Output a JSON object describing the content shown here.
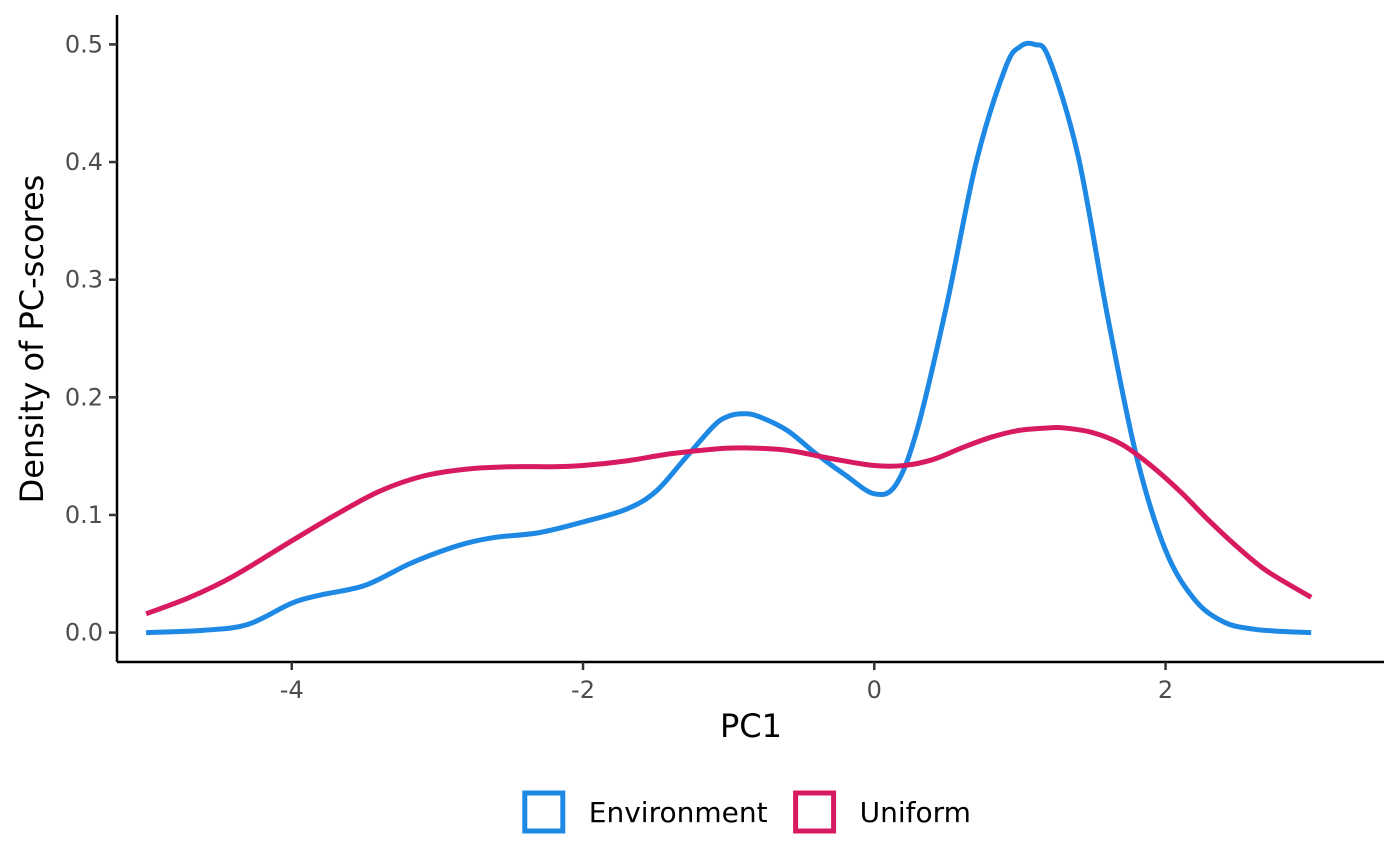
{
  "chart_data": {
    "type": "line",
    "title": "",
    "xlabel": "PC1",
    "ylabel": "Density of PC-scores",
    "xlim": [
      -5.2,
      3.5
    ],
    "ylim": [
      -0.025,
      0.525
    ],
    "x_ticks": [
      -4,
      -2,
      0,
      2
    ],
    "x_tick_labels": [
      "-4",
      "-2",
      "0",
      "2"
    ],
    "y_ticks": [
      0.0,
      0.1,
      0.2,
      0.3,
      0.4,
      0.5
    ],
    "y_tick_labels": [
      "0.0",
      "0.1",
      "0.2",
      "0.3",
      "0.4",
      "0.5"
    ],
    "grid": false,
    "legend_position": "bottom",
    "series": [
      {
        "name": "Environment",
        "color": "#1e88e5",
        "x": [
          -5.0,
          -4.6,
          -4.3,
          -4.0,
          -3.8,
          -3.5,
          -3.2,
          -3.0,
          -2.8,
          -2.6,
          -2.3,
          -2.0,
          -1.7,
          -1.5,
          -1.3,
          -1.1,
          -1.0,
          -0.9,
          -0.8,
          -0.6,
          -0.4,
          -0.2,
          0.0,
          0.15,
          0.3,
          0.5,
          0.7,
          0.9,
          1.0,
          1.1,
          1.2,
          1.4,
          1.6,
          1.8,
          2.0,
          2.2,
          2.4,
          2.6,
          2.8,
          3.0
        ],
        "y": [
          0.0,
          0.002,
          0.007,
          0.025,
          0.032,
          0.04,
          0.058,
          0.068,
          0.076,
          0.081,
          0.085,
          0.094,
          0.105,
          0.12,
          0.148,
          0.176,
          0.184,
          0.186,
          0.184,
          0.172,
          0.152,
          0.134,
          0.118,
          0.126,
          0.175,
          0.28,
          0.4,
          0.48,
          0.498,
          0.5,
          0.488,
          0.405,
          0.27,
          0.15,
          0.07,
          0.028,
          0.009,
          0.003,
          0.001,
          0.0
        ]
      },
      {
        "name": "Uniform",
        "color": "#d81b60",
        "x": [
          -5.0,
          -4.7,
          -4.4,
          -4.0,
          -3.7,
          -3.4,
          -3.1,
          -2.8,
          -2.5,
          -2.2,
          -2.0,
          -1.7,
          -1.4,
          -1.1,
          -0.9,
          -0.6,
          -0.3,
          0.0,
          0.2,
          0.4,
          0.6,
          0.8,
          1.0,
          1.2,
          1.3,
          1.5,
          1.7,
          1.9,
          2.1,
          2.3,
          2.5,
          2.7,
          3.0
        ],
        "y": [
          0.016,
          0.03,
          0.048,
          0.078,
          0.1,
          0.12,
          0.133,
          0.139,
          0.141,
          0.141,
          0.142,
          0.146,
          0.152,
          0.156,
          0.157,
          0.155,
          0.148,
          0.142,
          0.142,
          0.147,
          0.157,
          0.166,
          0.172,
          0.174,
          0.174,
          0.17,
          0.16,
          0.142,
          0.12,
          0.095,
          0.072,
          0.052,
          0.03
        ]
      }
    ]
  }
}
